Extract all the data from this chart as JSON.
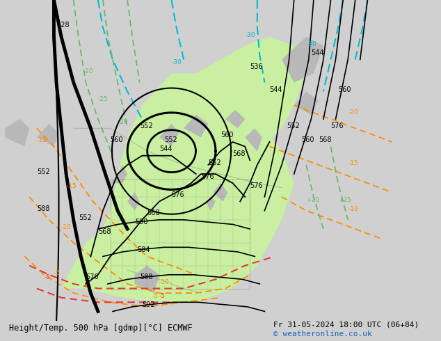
{
  "title_left": "Height/Temp. 500 hPa [gdmp][°C] ECMWF",
  "title_right": "Fr 31-05-2024 18:00 UTC (06+84)",
  "copyright": "© weatheronline.co.uk",
  "bg_color": "#d0d0d0",
  "map_bg_color": "#e8e8e8",
  "green_fill_color": "#c8f0a0",
  "land_color": "#b8b8b8",
  "black_contour_color": "#000000",
  "orange_contour_color": "#ff8c00",
  "cyan_contour_color": "#00bcd4",
  "green_contour_color": "#4caf50",
  "red_contour_color": "#e53935",
  "label_fontsize": 7,
  "footer_fontsize": 8.5,
  "copyright_color": "#1565c0"
}
